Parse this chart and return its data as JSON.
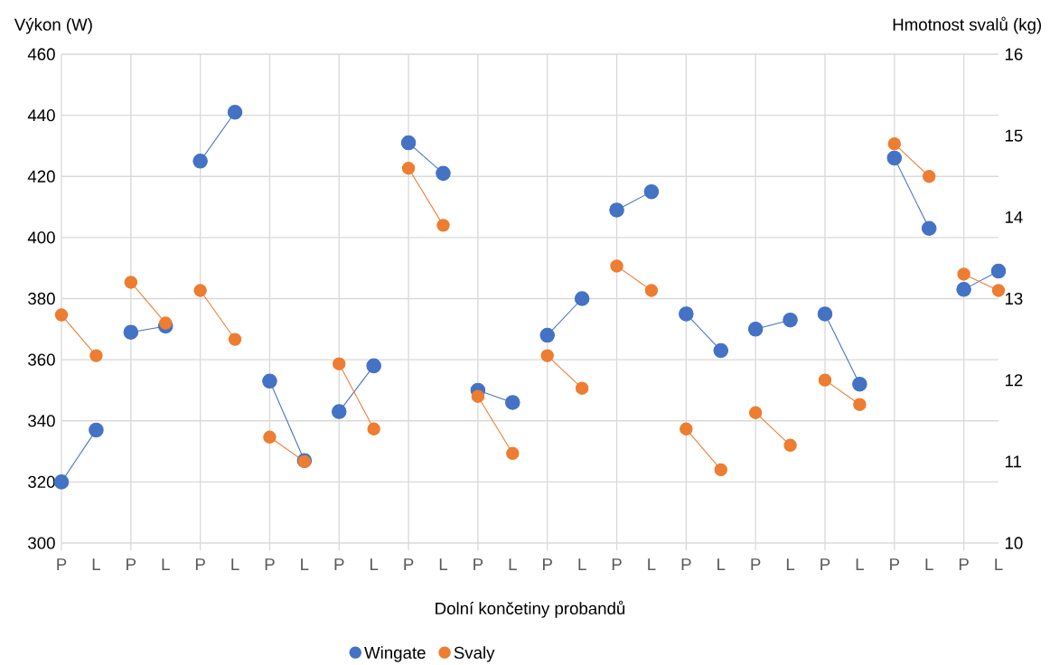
{
  "chart_data": {
    "type": "line",
    "xlabel": "Dolní končetiny probandů",
    "ylabel": "Výkon (W)",
    "y2label": "Hmotnost svalů (kg)",
    "categories": [
      "P",
      "L",
      "P",
      "L",
      "P",
      "L",
      "P",
      "L",
      "P",
      "L",
      "P",
      "L",
      "P",
      "L",
      "P",
      "L",
      "P",
      "L",
      "P",
      "L",
      "P",
      "L",
      "P",
      "L",
      "P",
      "L",
      "P",
      "L"
    ],
    "ylim": [
      300,
      460
    ],
    "yticks": [
      300,
      320,
      340,
      360,
      380,
      400,
      420,
      440,
      460
    ],
    "y2lim": [
      10,
      16
    ],
    "y2ticks": [
      10,
      11,
      12,
      13,
      14,
      15,
      16
    ],
    "grid": true,
    "legend": "bottom",
    "marker": "circle",
    "line_style": "solid",
    "series": [
      {
        "name": "Wingate",
        "color": "#4472c4",
        "values": [
          320,
          337,
          null,
          null,
          null,
          null,
          null,
          null,
          null,
          null,
          null,
          null,
          null,
          null,
          null,
          null,
          null,
          null,
          null,
          null,
          null,
          null,
          null,
          null,
          null,
          null,
          null,
          null
        ]
      },
      {
        "color": "#4472c4",
        "values": [
          null,
          null,
          369,
          371,
          null,
          null,
          null,
          null,
          null,
          null,
          null,
          null,
          null,
          null,
          null,
          null,
          null,
          null,
          null,
          null,
          null,
          null,
          null,
          null,
          null,
          null,
          null,
          null
        ]
      },
      {
        "color": "#4472c4",
        "values": [
          null,
          null,
          null,
          null,
          425,
          441,
          null,
          null,
          null,
          null,
          null,
          null,
          null,
          null,
          null,
          null,
          null,
          null,
          null,
          null,
          null,
          null,
          null,
          null,
          null,
          null,
          null,
          null
        ]
      },
      {
        "color": "#4472c4",
        "values": [
          null,
          null,
          null,
          null,
          null,
          null,
          353,
          327,
          null,
          null,
          null,
          null,
          null,
          null,
          null,
          null,
          null,
          null,
          null,
          null,
          null,
          null,
          null,
          null,
          null,
          null,
          null,
          null
        ]
      },
      {
        "color": "#4472c4",
        "values": [
          null,
          null,
          null,
          null,
          null,
          null,
          null,
          null,
          343,
          358,
          null,
          null,
          null,
          null,
          null,
          null,
          null,
          null,
          null,
          null,
          null,
          null,
          null,
          null,
          null,
          null,
          null,
          null
        ]
      },
      {
        "color": "#4472c4",
        "values": [
          null,
          null,
          null,
          null,
          null,
          null,
          null,
          null,
          null,
          null,
          431,
          421,
          null,
          null,
          null,
          null,
          null,
          null,
          null,
          null,
          null,
          null,
          null,
          null,
          null,
          null,
          null,
          null
        ]
      },
      {
        "color": "#4472c4",
        "values": [
          null,
          null,
          null,
          null,
          null,
          null,
          null,
          null,
          null,
          null,
          null,
          null,
          350,
          346,
          null,
          null,
          null,
          null,
          null,
          null,
          null,
          null,
          null,
          null,
          null,
          null,
          null,
          null
        ]
      },
      {
        "color": "#4472c4",
        "values": [
          null,
          null,
          null,
          null,
          null,
          null,
          null,
          null,
          null,
          null,
          null,
          null,
          null,
          null,
          368,
          380,
          null,
          null,
          null,
          null,
          null,
          null,
          null,
          null,
          null,
          null,
          null,
          null
        ]
      },
      {
        "color": "#4472c4",
        "values": [
          null,
          null,
          null,
          null,
          null,
          null,
          null,
          null,
          null,
          null,
          null,
          null,
          null,
          null,
          null,
          null,
          409,
          415,
          null,
          null,
          null,
          null,
          null,
          null,
          null,
          null,
          null,
          null
        ]
      },
      {
        "color": "#4472c4",
        "values": [
          null,
          null,
          null,
          null,
          null,
          null,
          null,
          null,
          null,
          null,
          null,
          null,
          null,
          null,
          null,
          null,
          null,
          null,
          375,
          363,
          null,
          null,
          null,
          null,
          null,
          null,
          null,
          null
        ]
      },
      {
        "color": "#4472c4",
        "values": [
          null,
          null,
          null,
          null,
          null,
          null,
          null,
          null,
          null,
          null,
          null,
          null,
          null,
          null,
          null,
          null,
          null,
          null,
          null,
          null,
          370,
          373,
          null,
          null,
          null,
          null,
          null,
          null
        ]
      },
      {
        "color": "#4472c4",
        "values": [
          null,
          null,
          null,
          null,
          null,
          null,
          null,
          null,
          null,
          null,
          null,
          null,
          null,
          null,
          null,
          null,
          null,
          null,
          null,
          null,
          null,
          null,
          375,
          352,
          null,
          null,
          null,
          null
        ]
      },
      {
        "color": "#4472c4",
        "values": [
          null,
          null,
          null,
          null,
          null,
          null,
          null,
          null,
          null,
          null,
          null,
          null,
          null,
          null,
          null,
          null,
          null,
          null,
          null,
          null,
          null,
          null,
          null,
          null,
          426,
          403,
          null,
          null
        ]
      },
      {
        "color": "#4472c4",
        "values": [
          null,
          null,
          null,
          null,
          null,
          null,
          null,
          null,
          null,
          null,
          null,
          null,
          null,
          null,
          null,
          null,
          null,
          null,
          null,
          null,
          null,
          null,
          null,
          null,
          null,
          null,
          383,
          389
        ]
      },
      {
        "name": "Svaly",
        "color": "#ed7d31",
        "axis": "y2",
        "values": [
          12.8,
          12.3,
          null,
          null,
          null,
          null,
          null,
          null,
          null,
          null,
          null,
          null,
          null,
          null,
          null,
          null,
          null,
          null,
          null,
          null,
          null,
          null,
          null,
          null,
          null,
          null,
          null,
          null
        ]
      },
      {
        "color": "#ed7d31",
        "axis": "y2",
        "values": [
          null,
          null,
          13.2,
          12.7,
          null,
          null,
          null,
          null,
          null,
          null,
          null,
          null,
          null,
          null,
          null,
          null,
          null,
          null,
          null,
          null,
          null,
          null,
          null,
          null,
          null,
          null,
          null,
          null
        ]
      },
      {
        "color": "#ed7d31",
        "axis": "y2",
        "values": [
          null,
          null,
          null,
          null,
          13.1,
          12.5,
          null,
          null,
          null,
          null,
          null,
          null,
          null,
          null,
          null,
          null,
          null,
          null,
          null,
          null,
          null,
          null,
          null,
          null,
          null,
          null,
          null,
          null
        ]
      },
      {
        "color": "#ed7d31",
        "axis": "y2",
        "values": [
          null,
          null,
          null,
          null,
          null,
          null,
          11.3,
          11.0,
          null,
          null,
          null,
          null,
          null,
          null,
          null,
          null,
          null,
          null,
          null,
          null,
          null,
          null,
          null,
          null,
          null,
          null,
          null,
          null
        ]
      },
      {
        "color": "#ed7d31",
        "axis": "y2",
        "values": [
          null,
          null,
          null,
          null,
          null,
          null,
          null,
          null,
          12.2,
          11.4,
          null,
          null,
          null,
          null,
          null,
          null,
          null,
          null,
          null,
          null,
          null,
          null,
          null,
          null,
          null,
          null,
          null,
          null
        ]
      },
      {
        "color": "#ed7d31",
        "axis": "y2",
        "values": [
          null,
          null,
          null,
          null,
          null,
          null,
          null,
          null,
          null,
          null,
          14.6,
          13.9,
          null,
          null,
          null,
          null,
          null,
          null,
          null,
          null,
          null,
          null,
          null,
          null,
          null,
          null,
          null,
          null
        ]
      },
      {
        "color": "#ed7d31",
        "axis": "y2",
        "values": [
          null,
          null,
          null,
          null,
          null,
          null,
          null,
          null,
          null,
          null,
          null,
          null,
          11.8,
          11.1,
          null,
          null,
          null,
          null,
          null,
          null,
          null,
          null,
          null,
          null,
          null,
          null,
          null,
          null
        ]
      },
      {
        "color": "#ed7d31",
        "axis": "y2",
        "values": [
          null,
          null,
          null,
          null,
          null,
          null,
          null,
          null,
          null,
          null,
          null,
          null,
          null,
          null,
          12.3,
          11.9,
          null,
          null,
          null,
          null,
          null,
          null,
          null,
          null,
          null,
          null,
          null,
          null
        ]
      },
      {
        "color": "#ed7d31",
        "axis": "y2",
        "values": [
          null,
          null,
          null,
          null,
          null,
          null,
          null,
          null,
          null,
          null,
          null,
          null,
          null,
          null,
          null,
          null,
          13.4,
          13.1,
          null,
          null,
          null,
          null,
          null,
          null,
          null,
          null,
          null,
          null
        ]
      },
      {
        "color": "#ed7d31",
        "axis": "y2",
        "values": [
          null,
          null,
          null,
          null,
          null,
          null,
          null,
          null,
          null,
          null,
          null,
          null,
          null,
          null,
          null,
          null,
          null,
          null,
          11.4,
          10.9,
          null,
          null,
          null,
          null,
          null,
          null,
          null,
          null
        ]
      },
      {
        "color": "#ed7d31",
        "axis": "y2",
        "values": [
          null,
          null,
          null,
          null,
          null,
          null,
          null,
          null,
          null,
          null,
          null,
          null,
          null,
          null,
          null,
          null,
          null,
          null,
          null,
          null,
          11.6,
          11.2,
          null,
          null,
          null,
          null,
          null,
          null
        ]
      },
      {
        "color": "#ed7d31",
        "axis": "y2",
        "values": [
          null,
          null,
          null,
          null,
          null,
          null,
          null,
          null,
          null,
          null,
          null,
          null,
          null,
          null,
          null,
          null,
          null,
          null,
          null,
          null,
          null,
          null,
          12.0,
          11.7,
          null,
          null,
          null,
          null
        ]
      },
      {
        "color": "#ed7d31",
        "axis": "y2",
        "values": [
          null,
          null,
          null,
          null,
          null,
          null,
          null,
          null,
          null,
          null,
          null,
          null,
          null,
          null,
          null,
          null,
          null,
          null,
          null,
          null,
          null,
          null,
          null,
          null,
          14.9,
          14.5,
          null,
          null
        ]
      },
      {
        "color": "#ed7d31",
        "axis": "y2",
        "values": [
          null,
          null,
          null,
          null,
          null,
          null,
          null,
          null,
          null,
          null,
          null,
          null,
          null,
          null,
          null,
          null,
          null,
          null,
          null,
          null,
          null,
          null,
          null,
          null,
          null,
          null,
          13.3,
          13.1
        ]
      }
    ]
  }
}
